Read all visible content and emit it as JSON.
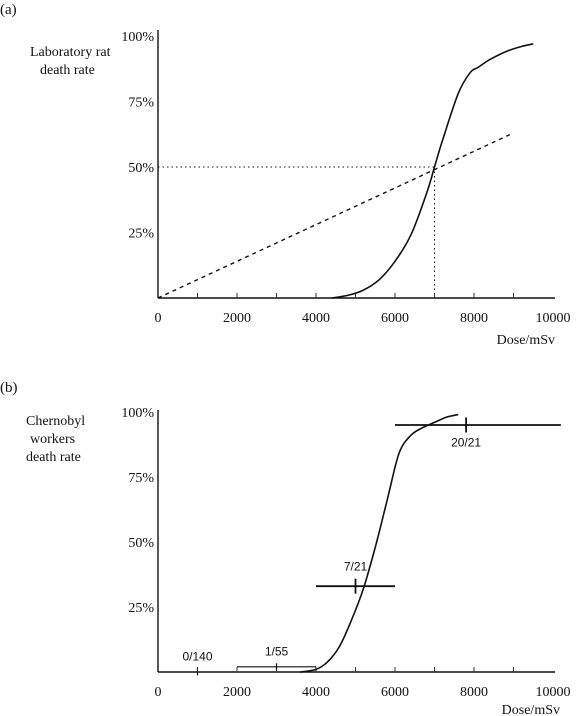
{
  "chart_data": [
    {
      "panel_label": "(a)",
      "type": "line",
      "ylabel": [
        "Laboratory rat",
        "death rate"
      ],
      "xlabel": "Dose/mSv",
      "xlim": [
        0,
        10000
      ],
      "ylim": [
        0,
        100
      ],
      "x_ticks": [
        "0",
        "2000",
        "4000",
        "6000",
        "8000",
        "10000"
      ],
      "y_ticks": [
        "25%",
        "50%",
        "75%",
        "100%"
      ],
      "series": [
        {
          "style": "solid",
          "x": [
            4400,
            4800,
            5200,
            5600,
            6000,
            6400,
            6800,
            7000,
            7200,
            7600,
            7900,
            8100,
            8400,
            8800,
            9200,
            9500
          ],
          "y": [
            0,
            1,
            3,
            7,
            14,
            24,
            40,
            50,
            60,
            78,
            86,
            88,
            91,
            94,
            96,
            97
          ]
        },
        {
          "style": "dashed",
          "x": [
            0,
            9000
          ],
          "y": [
            0,
            63
          ]
        }
      ],
      "reference": {
        "x": 7000,
        "y": 50
      }
    },
    {
      "panel_label": "(b)",
      "type": "line",
      "ylabel": [
        "Chernobyl",
        "workers",
        "death rate"
      ],
      "xlabel": "Dose/mSv",
      "xlim": [
        0,
        10000
      ],
      "ylim": [
        0,
        100
      ],
      "x_ticks": [
        "0",
        "2000",
        "4000",
        "6000",
        "8000",
        "10000"
      ],
      "y_ticks": [
        "25%",
        "50%",
        "75%",
        "100%"
      ],
      "curve": {
        "x": [
          3600,
          4000,
          4300,
          4600,
          4900,
          5200,
          5500,
          5800,
          6100,
          6400,
          6700,
          7000,
          7300,
          7600
        ],
        "y": [
          0,
          1,
          4,
          10,
          20,
          32,
          48,
          66,
          84,
          91,
          94,
          96,
          98,
          99
        ]
      },
      "points": [
        {
          "label": "0/140",
          "x": 1000,
          "y": 0,
          "xmin": 1000,
          "xmax": 1000,
          "bar_height": 7
        },
        {
          "label": "1/55",
          "x": 3000,
          "y": 2,
          "xmin": 2000,
          "xmax": 4000,
          "bar_height": 7
        },
        {
          "label": "7/21",
          "x": 5000,
          "y": 33,
          "xmin": 4000,
          "xmax": 6000,
          "bar_height": 15
        },
        {
          "label": "20/21",
          "x": 7800,
          "y": 95,
          "xmin": 6000,
          "xmax": 10200,
          "bar_height": 15
        }
      ]
    }
  ]
}
